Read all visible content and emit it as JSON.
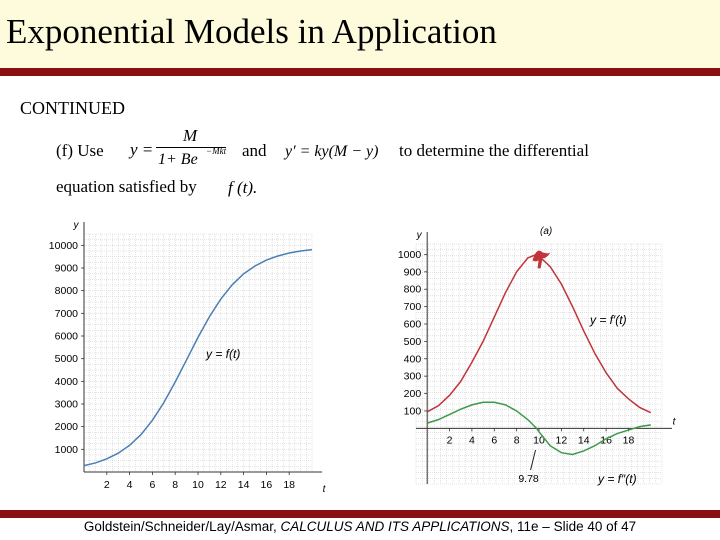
{
  "slide": {
    "title": "Exponential Models in Application",
    "continued": "CONTINUED",
    "text_f_use": "(f) Use",
    "text_and": "and",
    "text_to_determine": "to determine the differential",
    "text_equation_satisfied": "equation satisfied by",
    "text_ft": "f (t).",
    "formula1": {
      "lhs": "y =",
      "numerator": "M",
      "denominator": "1+ Be",
      "exponent": "−Mkt"
    },
    "formula2": "y′ = ky(M − y)",
    "footer_authors": "Goldstein/Schneider/Lay/Asmar, ",
    "footer_book": "CALCULUS AND ITS APPLICATIONS",
    "footer_rest": ", 11e – Slide 40 of 47",
    "colors": {
      "accent_rule": "#8b0f12",
      "title_bg": "#fdfbdc",
      "logistic_curve": "#4a7fb5",
      "derivative_curve": "#c0343a",
      "second_derivative_curve": "#3e9a4a"
    }
  },
  "chart_data": [
    {
      "type": "line",
      "ylabel": "y",
      "xlabel": "t",
      "x_ticks": [
        2,
        4,
        6,
        8,
        10,
        12,
        14,
        16,
        18
      ],
      "y_ticks": [
        1000,
        2000,
        3000,
        4000,
        5000,
        6000,
        7000,
        8000,
        9000,
        10000
      ],
      "xlim": [
        0,
        20
      ],
      "ylim": [
        0,
        10500
      ],
      "grid": true,
      "series": [
        {
          "name": "y = f(t)",
          "x": [
            0,
            1,
            2,
            3,
            4,
            5,
            6,
            7,
            8,
            9,
            10,
            11,
            12,
            13,
            14,
            15,
            16,
            17,
            18,
            19,
            20
          ],
          "values": [
            280,
            400,
            580,
            830,
            1180,
            1650,
            2280,
            3060,
            3970,
            4950,
            5940,
            6850,
            7630,
            8260,
            8740,
            9090,
            9350,
            9530,
            9660,
            9750,
            9810
          ]
        }
      ]
    },
    {
      "type": "line",
      "ylabel": "y",
      "xlabel": "t",
      "x_ticks": [
        2,
        4,
        6,
        8,
        10,
        12,
        14,
        16,
        18
      ],
      "y_ticks": [
        100,
        200,
        300,
        400,
        500,
        600,
        700,
        800,
        900,
        1000
      ],
      "xlim": [
        -1,
        21
      ],
      "ylim": [
        -320,
        1060
      ],
      "grid": true,
      "annotation": "9.78",
      "partial_label": "(a)",
      "series": [
        {
          "name": "y = f′(t)",
          "x": [
            0,
            1,
            2,
            3,
            4,
            5,
            6,
            7,
            8,
            9,
            9.78,
            10,
            11,
            12,
            13,
            14,
            15,
            16,
            17,
            18,
            19,
            20
          ],
          "values": [
            95,
            130,
            190,
            270,
            380,
            500,
            640,
            780,
            900,
            980,
            1000,
            990,
            930,
            830,
            700,
            560,
            430,
            320,
            230,
            170,
            120,
            90
          ]
        },
        {
          "name": "y = f″(t)",
          "x": [
            0,
            1,
            2,
            3,
            4,
            5,
            6,
            7,
            8,
            9,
            9.78,
            10,
            11,
            12,
            13,
            14,
            15,
            16,
            17,
            18,
            19,
            20
          ],
          "values": [
            30,
            50,
            80,
            110,
            135,
            150,
            150,
            135,
            100,
            50,
            0,
            -20,
            -100,
            -140,
            -150,
            -130,
            -100,
            -60,
            -30,
            -10,
            10,
            20
          ]
        }
      ]
    }
  ]
}
